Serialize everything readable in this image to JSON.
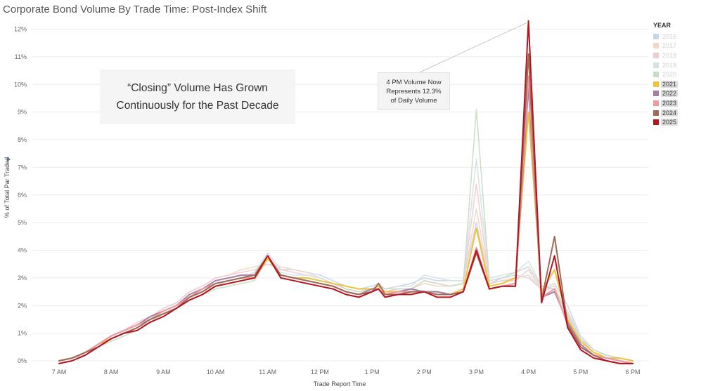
{
  "chart_data": {
    "type": "line",
    "title": "Corporate Bond Volume By Trade Time: Post-Index Shift",
    "xlabel": "Trade Report Time",
    "ylabel": "% of Total Par Traded",
    "x_ticks": [
      "7 AM",
      "8 AM",
      "9 AM",
      "10 AM",
      "11 AM",
      "12 PM",
      "1 PM",
      "2 PM",
      "3 PM",
      "4 PM",
      "5 PM",
      "6 PM"
    ],
    "x_range": [
      7,
      18
    ],
    "ylim": [
      0,
      12
    ],
    "y_ticks": [
      "0%",
      "1%",
      "2%",
      "3%",
      "4%",
      "5%",
      "6%",
      "7%",
      "8%",
      "9%",
      "10%",
      "11%",
      "12%"
    ],
    "grid": "horizontal",
    "legend_title": "YEAR",
    "legend_position": "right",
    "x": [
      7,
      7.25,
      7.5,
      7.75,
      8,
      8.25,
      8.5,
      8.75,
      9,
      9.25,
      9.5,
      9.75,
      10,
      10.25,
      10.5,
      10.75,
      11,
      11.25,
      11.5,
      11.75,
      12,
      12.25,
      12.5,
      12.75,
      13,
      13.125,
      13.25,
      13.5,
      13.75,
      14,
      14.25,
      14.5,
      14.75,
      15,
      15.25,
      15.5,
      15.75,
      16,
      16.25,
      16.5,
      16.75,
      17,
      17.25,
      17.5,
      17.75,
      18
    ],
    "series": [
      {
        "name": "2016",
        "color": "#c9d6ea",
        "active": false,
        "values": [
          0.0,
          0.1,
          0.3,
          0.5,
          0.8,
          1.0,
          1.2,
          1.4,
          1.7,
          1.9,
          2.2,
          2.4,
          2.7,
          2.9,
          3.0,
          3.2,
          3.9,
          3.3,
          3.3,
          3.2,
          3.1,
          2.9,
          2.7,
          2.6,
          2.7,
          2.8,
          2.6,
          2.7,
          2.8,
          3.0,
          2.9,
          2.9,
          2.9,
          5.0,
          2.8,
          3.0,
          3.1,
          3.0,
          2.6,
          2.8,
          2.0,
          0.9,
          0.4,
          0.2,
          0.1,
          0.0
        ]
      },
      {
        "name": "2017",
        "color": "#f3d6c3",
        "active": false,
        "values": [
          0.0,
          0.1,
          0.3,
          0.6,
          0.9,
          1.1,
          1.3,
          1.6,
          1.9,
          2.1,
          2.5,
          2.7,
          3.0,
          3.1,
          3.3,
          3.4,
          3.5,
          3.4,
          3.3,
          3.2,
          3.0,
          2.8,
          2.6,
          2.5,
          2.6,
          2.7,
          2.5,
          2.6,
          2.6,
          2.8,
          2.7,
          2.7,
          2.8,
          5.5,
          2.8,
          2.9,
          3.0,
          3.1,
          2.6,
          2.7,
          1.7,
          0.8,
          0.3,
          0.2,
          0.1,
          0.0
        ]
      },
      {
        "name": "2018",
        "color": "#efccd0",
        "active": false,
        "values": [
          0.0,
          0.1,
          0.3,
          0.6,
          0.9,
          1.1,
          1.4,
          1.6,
          1.9,
          2.1,
          2.5,
          2.7,
          3.0,
          3.1,
          3.2,
          3.3,
          3.5,
          3.3,
          3.2,
          3.1,
          3.0,
          2.8,
          2.6,
          2.5,
          2.6,
          2.7,
          2.5,
          2.6,
          2.6,
          2.9,
          2.8,
          2.7,
          2.8,
          6.4,
          2.8,
          2.9,
          2.9,
          3.3,
          2.6,
          2.6,
          1.6,
          0.8,
          0.3,
          0.1,
          0.1,
          0.0
        ]
      },
      {
        "name": "2019",
        "color": "#d4e2e4",
        "active": false,
        "values": [
          0.0,
          0.1,
          0.2,
          0.5,
          0.8,
          1.0,
          1.2,
          1.5,
          1.8,
          2.0,
          2.3,
          2.5,
          2.7,
          2.9,
          3.0,
          3.1,
          3.8,
          3.2,
          3.1,
          3.1,
          3.0,
          2.8,
          2.6,
          2.5,
          2.6,
          2.7,
          2.6,
          2.7,
          2.7,
          3.1,
          3.0,
          2.9,
          2.9,
          7.3,
          3.0,
          3.1,
          3.2,
          3.6,
          2.7,
          2.6,
          1.8,
          0.9,
          0.4,
          0.2,
          0.1,
          0.0
        ]
      },
      {
        "name": "2020",
        "color": "#c9dcc5",
        "active": false,
        "values": [
          0.0,
          0.1,
          0.2,
          0.5,
          0.7,
          0.9,
          1.1,
          1.4,
          1.7,
          1.9,
          2.2,
          2.4,
          2.6,
          2.7,
          2.8,
          2.9,
          3.7,
          3.1,
          3.0,
          3.0,
          2.9,
          2.8,
          2.6,
          2.5,
          2.6,
          2.7,
          2.6,
          2.6,
          2.6,
          2.9,
          2.8,
          2.7,
          2.8,
          9.1,
          2.9,
          3.0,
          3.2,
          3.4,
          2.7,
          2.6,
          1.7,
          0.8,
          0.4,
          0.2,
          0.1,
          0.0
        ]
      },
      {
        "name": "2021",
        "color": "#efc23a",
        "active": true,
        "values": [
          0.0,
          0.1,
          0.3,
          0.6,
          0.8,
          1.0,
          1.2,
          1.5,
          1.7,
          1.9,
          2.2,
          2.4,
          2.7,
          2.8,
          2.9,
          3.0,
          3.7,
          3.1,
          3.0,
          3.0,
          2.9,
          2.8,
          2.7,
          2.6,
          2.6,
          2.7,
          2.5,
          2.5,
          2.5,
          2.5,
          2.5,
          2.4,
          2.6,
          4.8,
          2.7,
          2.8,
          3.0,
          9.0,
          2.5,
          3.3,
          1.5,
          0.7,
          0.3,
          0.1,
          0.1,
          0.0
        ]
      },
      {
        "name": "2022",
        "color": "#a57fa4",
        "active": true,
        "values": [
          0.0,
          0.1,
          0.3,
          0.6,
          0.9,
          1.1,
          1.3,
          1.6,
          1.8,
          2.0,
          2.4,
          2.6,
          2.9,
          3.0,
          3.1,
          3.1,
          3.8,
          3.1,
          3.0,
          2.9,
          2.8,
          2.7,
          2.5,
          2.4,
          2.6,
          2.6,
          2.4,
          2.5,
          2.6,
          2.5,
          2.5,
          2.4,
          2.5,
          4.0,
          2.6,
          2.7,
          2.8,
          9.9,
          2.3,
          2.5,
          1.4,
          0.6,
          0.2,
          0.1,
          0.0,
          -0.1
        ]
      },
      {
        "name": "2023",
        "color": "#f09aa5",
        "active": true,
        "values": [
          0.0,
          0.1,
          0.3,
          0.6,
          0.9,
          1.1,
          1.3,
          1.5,
          1.8,
          2.0,
          2.3,
          2.6,
          2.8,
          2.9,
          3.0,
          3.0,
          3.8,
          3.1,
          3.0,
          2.9,
          2.8,
          2.7,
          2.5,
          2.4,
          2.5,
          2.6,
          2.4,
          2.5,
          2.5,
          2.5,
          2.4,
          2.4,
          2.5,
          4.1,
          2.6,
          2.7,
          2.8,
          10.3,
          2.3,
          2.6,
          1.3,
          0.5,
          0.2,
          0.1,
          0.0,
          -0.1
        ]
      },
      {
        "name": "2024",
        "color": "#9f6a56",
        "active": true,
        "values": [
          0.0,
          0.1,
          0.3,
          0.5,
          0.8,
          1.0,
          1.2,
          1.5,
          1.7,
          1.9,
          2.3,
          2.5,
          2.8,
          2.9,
          3.0,
          3.1,
          3.8,
          3.1,
          3.0,
          2.9,
          2.8,
          2.7,
          2.5,
          2.4,
          2.5,
          2.8,
          2.4,
          2.4,
          2.5,
          2.5,
          2.4,
          2.4,
          2.5,
          3.9,
          2.6,
          2.7,
          2.7,
          11.1,
          2.2,
          4.5,
          1.3,
          0.5,
          0.2,
          0.0,
          -0.1,
          -0.1
        ]
      },
      {
        "name": "2025",
        "color": "#b3141f",
        "active": true,
        "values": [
          -0.1,
          0.0,
          0.2,
          0.5,
          0.8,
          1.0,
          1.1,
          1.4,
          1.6,
          1.9,
          2.2,
          2.4,
          2.7,
          2.8,
          2.9,
          3.0,
          3.8,
          3.0,
          2.9,
          2.8,
          2.7,
          2.6,
          2.4,
          2.3,
          2.5,
          2.6,
          2.3,
          2.4,
          2.4,
          2.5,
          2.3,
          2.3,
          2.5,
          4.0,
          2.6,
          2.7,
          2.7,
          12.3,
          2.1,
          3.8,
          1.2,
          0.4,
          0.1,
          0.0,
          -0.1,
          -0.1
        ]
      }
    ],
    "annotations": [
      {
        "text": [
          "“Closing” Volume Has Grown",
          "Continuously for the Past Decade"
        ]
      },
      {
        "text": [
          "4 PM Volume Now",
          "Represents 12.3%",
          "of Daily Volume"
        ],
        "points_to": {
          "x": 16,
          "y": 12.3
        }
      }
    ]
  }
}
